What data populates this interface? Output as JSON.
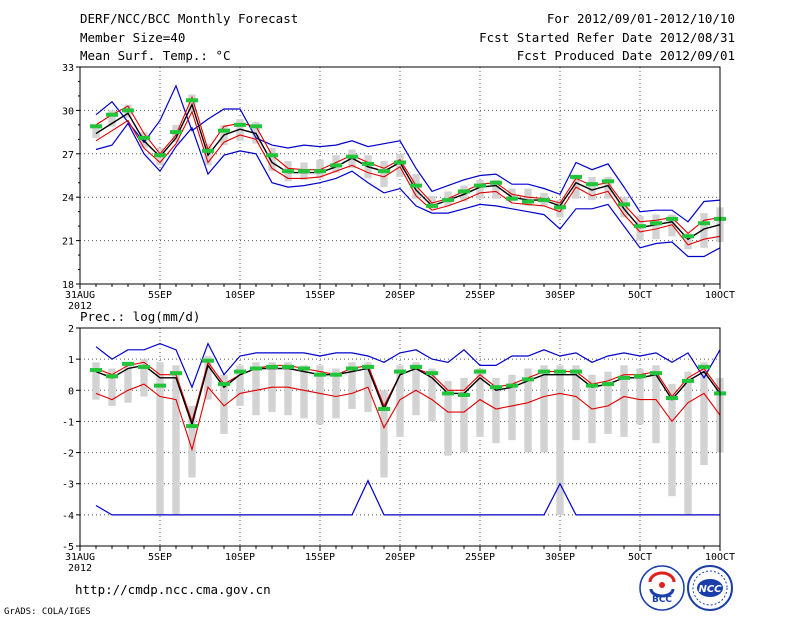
{
  "header": {
    "title": "DERF/NCC/BCC Monthly Forecast",
    "member_size": "Member Size=40",
    "variable_top": "Mean Surf. Temp.: °C",
    "period": "For 2012/09/01-2012/10/10",
    "started": "Fcst Started Refer Date 2012/08/31",
    "produced": "Fcst Produced Date 2012/09/01"
  },
  "bottom_panel_label": "Prec.: log(mm/d)",
  "footer": {
    "url": "http://cmdp.ncc.cma.gov.cn",
    "credit": "GrADS: COLA/IGES",
    "logo_left_text": "BCC",
    "logo_right_text": "NCC"
  },
  "colors": {
    "envelope": "#0000cc",
    "median": "#000000",
    "lower": "#e00000",
    "mean": "#22c43a",
    "box": "#d3d3d3",
    "grid": "#555555"
  },
  "chart_data": [
    {
      "type": "line",
      "title": "Mean Surf. Temp.: °C",
      "x": [
        0,
        1,
        2,
        3,
        4,
        5,
        6,
        7,
        8,
        9,
        10,
        11,
        12,
        13,
        14,
        15,
        16,
        17,
        18,
        19,
        20,
        21,
        22,
        23,
        24,
        25,
        26,
        27,
        28,
        29,
        30,
        31,
        32,
        33,
        34,
        35,
        36,
        37,
        38,
        39,
        40
      ],
      "x_ticks": [
        {
          "x": 0,
          "label": "31AUG",
          "sub": "2012"
        },
        {
          "x": 5,
          "label": "5SEP"
        },
        {
          "x": 10,
          "label": "10SEP"
        },
        {
          "x": 15,
          "label": "15SEP"
        },
        {
          "x": 20,
          "label": "20SEP"
        },
        {
          "x": 25,
          "label": "25SEP"
        },
        {
          "x": 30,
          "label": "30SEP"
        },
        {
          "x": 35,
          "label": "5OCT"
        },
        {
          "x": 40,
          "label": "10OCT"
        }
      ],
      "ylim": [
        18,
        33
      ],
      "y_ticks": [
        18,
        21,
        24,
        27,
        30,
        33
      ],
      "grid": true,
      "box_start": 1,
      "series": [
        {
          "name": "max",
          "values": [
            null,
            29.7,
            30.6,
            29.2,
            27.8,
            29.3,
            31.7,
            28.6,
            29.4,
            30.1,
            30.1,
            28.1,
            27.6,
            27.4,
            27.6,
            27.5,
            27.6,
            27.9,
            27.5,
            27.7,
            27.9,
            26.0,
            24.4,
            24.8,
            25.2,
            25.5,
            25.6,
            24.9,
            24.9,
            24.6,
            24.2,
            26.4,
            25.9,
            26.3,
            24.7,
            23.0,
            23.1,
            23.1,
            22.3,
            23.7,
            23.8
          ]
        },
        {
          "name": "upper",
          "values": [
            null,
            29.0,
            29.7,
            30.3,
            28.4,
            27.0,
            28.3,
            30.9,
            27.3,
            28.9,
            29.1,
            28.9,
            26.9,
            26.0,
            25.9,
            25.9,
            26.4,
            26.9,
            26.4,
            26.0,
            26.6,
            24.8,
            23.6,
            23.9,
            24.4,
            24.9,
            25.0,
            24.2,
            24.0,
            23.9,
            23.6,
            25.3,
            24.8,
            25.0,
            23.5,
            22.3,
            22.4,
            22.6,
            21.5,
            22.4,
            22.6
          ]
        },
        {
          "name": "median",
          "values": [
            null,
            28.4,
            29.1,
            29.8,
            27.9,
            26.8,
            28.1,
            30.4,
            26.9,
            28.3,
            28.7,
            28.4,
            26.4,
            25.7,
            25.7,
            25.7,
            26.1,
            26.7,
            26.1,
            25.8,
            26.4,
            24.5,
            23.4,
            23.8,
            24.2,
            24.7,
            24.8,
            24.0,
            23.8,
            23.8,
            23.4,
            25.0,
            24.5,
            24.8,
            23.2,
            21.9,
            22.1,
            22.3,
            21.1,
            21.8,
            22.1
          ]
        },
        {
          "name": "lower",
          "values": [
            null,
            27.9,
            28.6,
            29.3,
            27.4,
            26.4,
            27.7,
            29.9,
            26.4,
            27.8,
            28.3,
            28.0,
            26.0,
            25.3,
            25.3,
            25.4,
            25.8,
            26.2,
            25.7,
            25.4,
            26.1,
            24.1,
            23.1,
            23.4,
            23.8,
            24.3,
            24.4,
            23.6,
            23.5,
            23.4,
            23.0,
            24.7,
            24.1,
            24.4,
            22.8,
            21.6,
            21.8,
            22.1,
            20.7,
            21.1,
            21.3
          ]
        },
        {
          "name": "min",
          "values": [
            null,
            27.3,
            27.6,
            29.1,
            27.0,
            25.8,
            27.5,
            28.8,
            25.6,
            26.9,
            27.2,
            27.0,
            25.0,
            24.7,
            24.8,
            25.0,
            25.3,
            25.8,
            25.0,
            24.3,
            24.6,
            23.4,
            22.9,
            22.9,
            23.2,
            23.5,
            23.4,
            23.2,
            23.0,
            22.8,
            21.8,
            23.2,
            23.2,
            23.5,
            22.0,
            20.5,
            20.8,
            20.9,
            19.9,
            19.9,
            20.5
          ]
        },
        {
          "name": "box_top",
          "values": [
            null,
            28.8,
            30.0,
            30.4,
            28.5,
            27.4,
            29.0,
            31.1,
            27.7,
            29.0,
            29.4,
            29.2,
            27.4,
            26.5,
            26.4,
            26.6,
            26.9,
            27.3,
            26.9,
            26.5,
            27.0,
            25.6,
            24.1,
            24.4,
            24.8,
            25.2,
            25.2,
            24.6,
            24.6,
            24.3,
            23.8,
            25.5,
            25.4,
            25.4,
            24.0,
            22.7,
            22.8,
            22.8,
            21.5,
            22.9,
            23.3
          ]
        },
        {
          "name": "box_bottom",
          "values": [
            null,
            28.1,
            28.9,
            29.5,
            27.4,
            26.2,
            27.8,
            29.9,
            26.2,
            27.6,
            27.9,
            27.7,
            25.8,
            25.1,
            25.2,
            25.3,
            25.7,
            26.0,
            25.3,
            24.7,
            25.4,
            23.9,
            23.2,
            23.4,
            23.7,
            23.9,
            23.9,
            23.7,
            23.4,
            23.4,
            22.6,
            23.9,
            23.8,
            23.9,
            22.6,
            21.0,
            21.1,
            21.3,
            20.4,
            20.5,
            20.9
          ]
        },
        {
          "name": "mean",
          "values": [
            null,
            28.9,
            29.7,
            30.0,
            28.1,
            26.9,
            28.5,
            30.7,
            27.2,
            28.6,
            29.0,
            28.9,
            26.9,
            25.8,
            25.8,
            25.8,
            26.2,
            26.8,
            26.3,
            25.8,
            26.4,
            24.8,
            23.4,
            23.8,
            24.4,
            24.8,
            25.0,
            23.9,
            23.7,
            23.8,
            23.3,
            25.4,
            24.9,
            25.1,
            23.5,
            22.0,
            22.2,
            22.5,
            21.3,
            22.2,
            22.5
          ]
        }
      ]
    },
    {
      "type": "line",
      "title": "Prec.: log(mm/d)",
      "x": [
        0,
        1,
        2,
        3,
        4,
        5,
        6,
        7,
        8,
        9,
        10,
        11,
        12,
        13,
        14,
        15,
        16,
        17,
        18,
        19,
        20,
        21,
        22,
        23,
        24,
        25,
        26,
        27,
        28,
        29,
        30,
        31,
        32,
        33,
        34,
        35,
        36,
        37,
        38,
        39,
        40
      ],
      "x_ticks": [
        {
          "x": 0,
          "label": "31AUG",
          "sub": "2012"
        },
        {
          "x": 5,
          "label": "5SEP"
        },
        {
          "x": 10,
          "label": "10SEP"
        },
        {
          "x": 15,
          "label": "15SEP"
        },
        {
          "x": 20,
          "label": "20SEP"
        },
        {
          "x": 25,
          "label": "25SEP"
        },
        {
          "x": 30,
          "label": "30SEP"
        },
        {
          "x": 35,
          "label": "5OCT"
        },
        {
          "x": 40,
          "label": "10OCT"
        }
      ],
      "ylim": [
        -5,
        2
      ],
      "y_ticks": [
        -5,
        -4,
        -3,
        -2,
        -1,
        0,
        1,
        2
      ],
      "grid": true,
      "box_start": 1,
      "series": [
        {
          "name": "max",
          "values": [
            null,
            1.4,
            1.0,
            1.3,
            1.3,
            1.5,
            1.3,
            0.1,
            1.5,
            0.5,
            1.1,
            1.2,
            1.2,
            1.2,
            1.2,
            1.1,
            1.2,
            1.2,
            1.1,
            0.9,
            1.2,
            1.3,
            1.0,
            0.9,
            1.3,
            0.8,
            0.8,
            1.1,
            1.1,
            1.3,
            1.1,
            1.2,
            0.9,
            1.1,
            1.2,
            1.1,
            1.2,
            0.9,
            1.2,
            0.4,
            1.3
          ]
        },
        {
          "name": "upper",
          "values": [
            null,
            0.7,
            0.5,
            0.8,
            0.9,
            0.5,
            0.5,
            -1.0,
            0.9,
            0.2,
            0.5,
            0.7,
            0.8,
            0.8,
            0.7,
            0.6,
            0.5,
            0.7,
            0.8,
            -0.5,
            0.5,
            0.7,
            0.5,
            0.0,
            0.0,
            0.5,
            0.1,
            0.2,
            0.4,
            0.6,
            0.6,
            0.6,
            0.2,
            0.3,
            0.5,
            0.5,
            0.6,
            -0.2,
            0.4,
            0.7,
            0.0
          ]
        },
        {
          "name": "median",
          "values": [
            null,
            0.6,
            0.4,
            0.7,
            0.8,
            0.4,
            0.4,
            -1.1,
            0.8,
            0.1,
            0.5,
            0.7,
            0.7,
            0.7,
            0.6,
            0.5,
            0.5,
            0.6,
            0.7,
            -0.6,
            0.5,
            0.7,
            0.4,
            -0.1,
            -0.1,
            0.4,
            0.0,
            0.1,
            0.3,
            0.5,
            0.5,
            0.5,
            0.1,
            0.2,
            0.4,
            0.4,
            0.5,
            -0.3,
            0.3,
            0.6,
            -0.1
          ]
        },
        {
          "name": "lower",
          "values": [
            null,
            -0.1,
            -0.3,
            0.0,
            0.2,
            -0.2,
            -0.3,
            -1.9,
            0.1,
            -0.5,
            -0.1,
            0.0,
            0.1,
            0.1,
            0.0,
            -0.1,
            -0.2,
            -0.1,
            0.1,
            -1.2,
            -0.3,
            0.0,
            -0.3,
            -0.7,
            -0.7,
            -0.3,
            -0.6,
            -0.5,
            -0.4,
            -0.2,
            -0.1,
            -0.2,
            -0.6,
            -0.5,
            -0.2,
            -0.3,
            -0.3,
            -1.0,
            -0.4,
            -0.1,
            -0.8
          ]
        },
        {
          "name": "min",
          "values": [
            null,
            -3.7,
            -4.0,
            -4.0,
            -4.0,
            -4.0,
            -4.0,
            -4.0,
            -4.0,
            -4.0,
            -4.0,
            -4.0,
            -4.0,
            -4.0,
            -4.0,
            -4.0,
            -4.0,
            -4.0,
            -2.9,
            -4.0,
            -4.0,
            -4.0,
            -4.0,
            -4.0,
            -4.0,
            -4.0,
            -4.0,
            -4.0,
            -4.0,
            -4.0,
            -3.0,
            -4.0,
            -4.0,
            -4.0,
            -4.0,
            -4.0,
            -4.0,
            -4.0,
            -4.0,
            -4.0,
            -4.0
          ]
        },
        {
          "name": "box_top",
          "values": [
            null,
            0.9,
            0.7,
            0.9,
            1.0,
            0.9,
            0.8,
            -0.5,
            1.1,
            0.5,
            0.8,
            0.9,
            0.9,
            0.9,
            0.8,
            0.8,
            0.7,
            0.9,
            0.9,
            0.0,
            0.8,
            0.9,
            0.7,
            0.3,
            0.4,
            0.7,
            0.4,
            0.5,
            0.7,
            0.8,
            0.8,
            0.8,
            0.5,
            0.6,
            0.8,
            0.7,
            0.8,
            0.2,
            0.6,
            0.9,
            0.4
          ]
        },
        {
          "name": "box_bottom",
          "values": [
            null,
            -0.3,
            -0.5,
            -0.4,
            -0.2,
            -4.0,
            -4.0,
            -2.8,
            -0.3,
            -1.4,
            -0.5,
            -0.8,
            -0.7,
            -0.8,
            -0.9,
            -1.1,
            -0.9,
            -0.6,
            -0.7,
            -2.8,
            -1.5,
            -0.8,
            -1.0,
            -2.1,
            -2.0,
            -1.5,
            -1.7,
            -1.6,
            -2.0,
            -2.0,
            -4.0,
            -1.6,
            -1.7,
            -1.4,
            -1.5,
            -1.1,
            -1.7,
            -3.4,
            -4.0,
            -2.4,
            -2.0
          ]
        },
        {
          "name": "mean",
          "values": [
            null,
            0.65,
            0.45,
            0.85,
            0.75,
            0.15,
            0.55,
            -1.15,
            0.95,
            0.2,
            0.6,
            0.7,
            0.75,
            0.75,
            0.7,
            0.5,
            0.5,
            0.7,
            0.75,
            -0.6,
            0.6,
            0.75,
            0.55,
            -0.1,
            -0.15,
            0.6,
            0.1,
            0.15,
            0.35,
            0.6,
            0.6,
            0.6,
            0.15,
            0.2,
            0.4,
            0.45,
            0.55,
            -0.25,
            0.3,
            0.75,
            -0.1
          ]
        }
      ]
    }
  ]
}
